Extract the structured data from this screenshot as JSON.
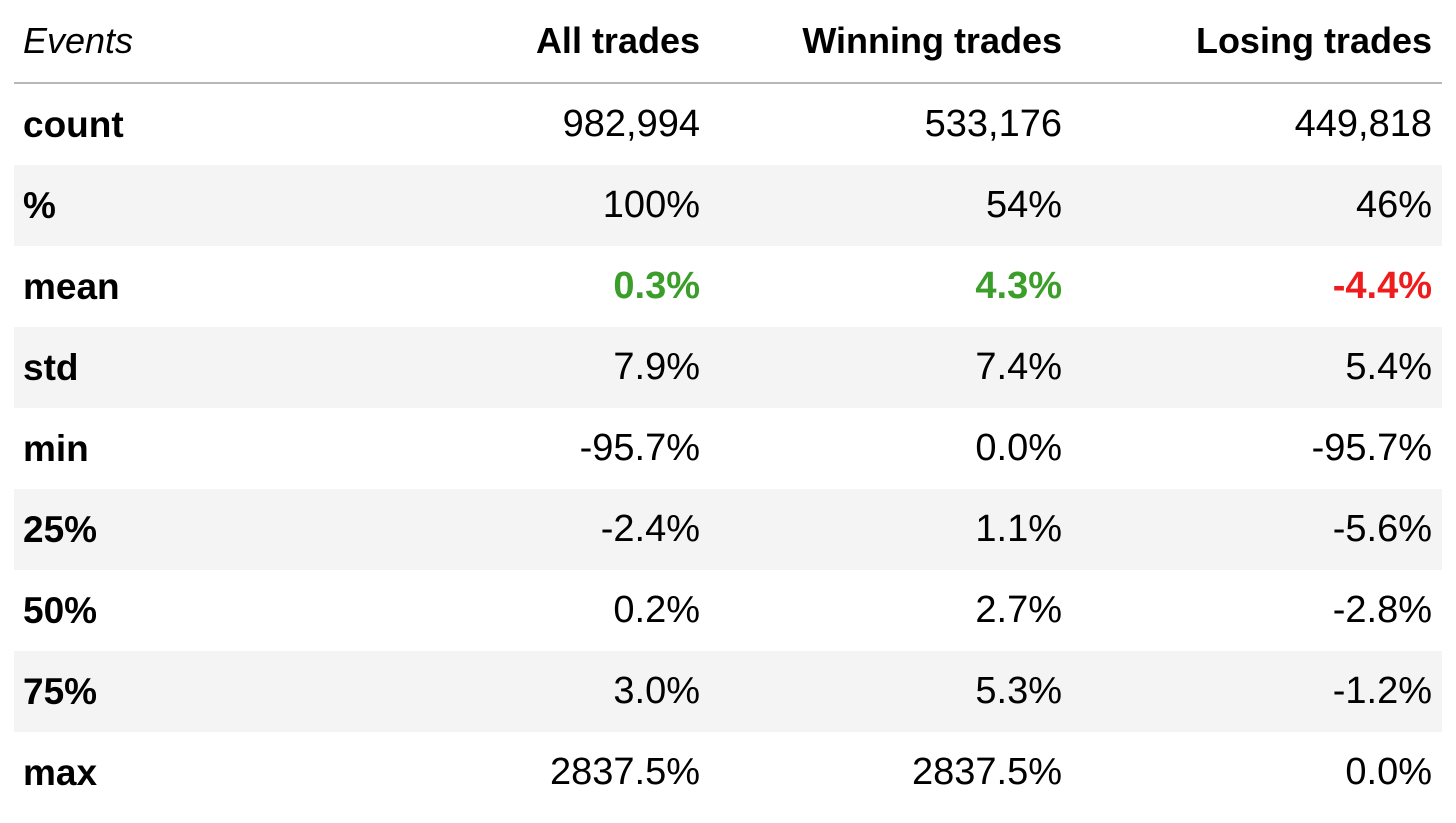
{
  "table": {
    "headers": [
      "Events",
      "All trades",
      "Winning trades",
      "Losing trades"
    ],
    "rows": [
      {
        "label": "count",
        "values": [
          "982,994",
          "533,176",
          "449,818"
        ]
      },
      {
        "label": "%",
        "values": [
          "100%",
          "54%",
          "46%"
        ]
      },
      {
        "label": "mean",
        "values": [
          "0.3%",
          "4.3%",
          "-4.4%"
        ]
      },
      {
        "label": "std",
        "values": [
          "7.9%",
          "7.4%",
          "5.4%"
        ]
      },
      {
        "label": "min",
        "values": [
          "-95.7%",
          "0.0%",
          "-95.7%"
        ]
      },
      {
        "label": "25%",
        "values": [
          "-2.4%",
          "1.1%",
          "-5.6%"
        ]
      },
      {
        "label": "50%",
        "values": [
          "0.2%",
          "2.7%",
          "-2.8%"
        ]
      },
      {
        "label": "75%",
        "values": [
          "3.0%",
          "5.3%",
          "-1.2%"
        ]
      },
      {
        "label": "max",
        "values": [
          "2837.5%",
          "2837.5%",
          "0.0%"
        ]
      }
    ]
  },
  "colors": {
    "positive": "#3c9e2a",
    "negative": "#ee1c1c",
    "stripe": "#f4f4f4",
    "header_rule": "#b8b8b8"
  }
}
